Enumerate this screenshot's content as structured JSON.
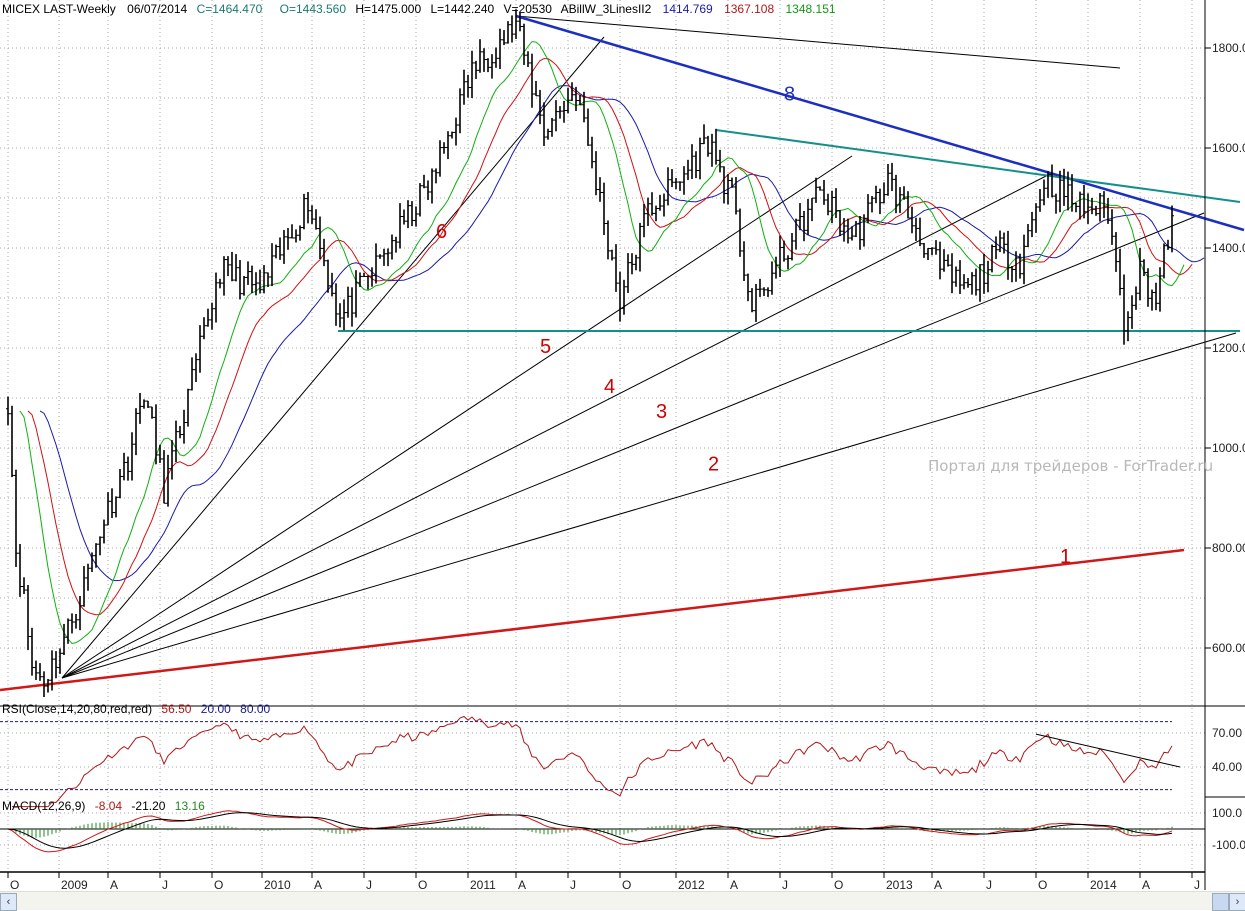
{
  "header": {
    "symbol": "MICEX LAST-Weekly",
    "date": "06/07/2014",
    "close": "C=1464.470",
    "open": "O=1443.560",
    "high": "H=1475.000",
    "low": "L=1442.240",
    "volume": "V=20530",
    "indicator": "ABillW_3LinesII2",
    "jaw": "1414.769",
    "teeth": "1367.108",
    "lips": "1348.151"
  },
  "rsi_legend": {
    "name": "RSI(Close,14,20,80,red,red)",
    "value": "56.50",
    "low": "20.00",
    "high": "80.00"
  },
  "macd_legend": {
    "name": "MACD(12,26,9)",
    "macd": "-8.04",
    "signal": "-21.20",
    "hist": "13.16"
  },
  "watermark": "Портал для трейдеров - ForTrader.ru",
  "colors": {
    "jaw": "#1a1aa8",
    "teeth": "#d01010",
    "lips": "#10b010",
    "trend8": "#1c2fc0",
    "teal": "#14908a",
    "trend1": "#d01818",
    "rsi": "#b01818",
    "macd_hist": "#228822"
  },
  "chart_data": {
    "type": "line",
    "title": "MICEX LAST-Weekly",
    "bars": 292,
    "ylim": [
      480,
      1900
    ],
    "price_ticks": [
      "600.00",
      "800.00",
      "1000.00",
      "1200.00",
      "1400.00",
      "1600.00",
      "1800.00"
    ],
    "price_tick_values": [
      600,
      800,
      1000,
      1200,
      1400,
      1600,
      1800
    ],
    "price_anchors": [
      [
        0,
        1096
      ],
      [
        2,
        800
      ],
      [
        4,
        696
      ],
      [
        6,
        560
      ],
      [
        9,
        536
      ],
      [
        13,
        596
      ],
      [
        18,
        700
      ],
      [
        23,
        836
      ],
      [
        30,
        980
      ],
      [
        34,
        1116
      ],
      [
        39,
        916
      ],
      [
        45,
        1100
      ],
      [
        53,
        1356
      ],
      [
        63,
        1316
      ],
      [
        70,
        1420
      ],
      [
        75,
        1496
      ],
      [
        83,
        1256
      ],
      [
        93,
        1376
      ],
      [
        106,
        1536
      ],
      [
        116,
        1756
      ],
      [
        127,
        1846
      ],
      [
        134,
        1636
      ],
      [
        142,
        1716
      ],
      [
        148,
        1496
      ],
      [
        153,
        1296
      ],
      [
        160,
        1476
      ],
      [
        168,
        1536
      ],
      [
        175,
        1616
      ],
      [
        181,
        1496
      ],
      [
        186,
        1276
      ],
      [
        196,
        1416
      ],
      [
        203,
        1516
      ],
      [
        211,
        1416
      ],
      [
        220,
        1536
      ],
      [
        233,
        1356
      ],
      [
        240,
        1316
      ],
      [
        248,
        1396
      ],
      [
        253,
        1376
      ],
      [
        259,
        1536
      ],
      [
        268,
        1486
      ],
      [
        275,
        1476
      ],
      [
        279,
        1256
      ],
      [
        283,
        1356
      ],
      [
        287,
        1296
      ],
      [
        291,
        1464
      ]
    ],
    "x_ticks": [
      {
        "label": "O",
        "week": 0
      },
      {
        "label": "2009",
        "week": 12.75
      },
      {
        "label": "A",
        "week": 25
      },
      {
        "label": "J",
        "week": 38
      },
      {
        "label": "O",
        "week": 51
      },
      {
        "label": "2010",
        "week": 63.5
      },
      {
        "label": "A",
        "week": 76
      },
      {
        "label": "J",
        "week": 89
      },
      {
        "label": "O",
        "week": 102
      },
      {
        "label": "2011",
        "week": 115
      },
      {
        "label": "A",
        "week": 127
      },
      {
        "label": "J",
        "week": 140
      },
      {
        "label": "O",
        "week": 153
      },
      {
        "label": "2012",
        "week": 167
      },
      {
        "label": "A",
        "week": 180
      },
      {
        "label": "J",
        "week": 193
      },
      {
        "label": "O",
        "week": 206
      },
      {
        "label": "2013",
        "week": 219
      },
      {
        "label": "A",
        "week": 231
      },
      {
        "label": "J",
        "week": 244
      },
      {
        "label": "O",
        "week": 257
      },
      {
        "label": "2014",
        "week": 270
      },
      {
        "label": "A",
        "week": 283
      },
      {
        "label": "J",
        "week": 296
      }
    ],
    "rsi_ticks": [
      "70.00",
      "40.00"
    ],
    "rsi_tick_values": [
      70,
      40
    ],
    "macd_ticks": [
      "100.0",
      "-100.0"
    ],
    "macd_tick_values": [
      100,
      -100
    ],
    "trendlines": [
      {
        "label": "1",
        "from": [
          -2,
          516
        ],
        "to": [
          294,
          796
        ],
        "label_at": [
          263,
          770
        ],
        "color": "trend1",
        "width": 2.5
      },
      {
        "label": "2",
        "from": [
          13.5,
          540
        ],
        "to": [
          307,
          1230
        ],
        "label_at": [
          175,
          955
        ],
        "color": "black",
        "width": 1
      },
      {
        "label": "3",
        "from": [
          13.5,
          540
        ],
        "to": [
          299,
          1470
        ],
        "label_at": [
          162,
          1060
        ],
        "color": "black",
        "width": 1
      },
      {
        "label": "4",
        "from": [
          13.5,
          540
        ],
        "to": [
          260,
          1546
        ],
        "label_at": [
          149,
          1110
        ],
        "color": "black",
        "width": 1
      },
      {
        "label": "5",
        "from": [
          13.5,
          540
        ],
        "to": [
          211,
          1584
        ],
        "label_at": [
          133,
          1190
        ],
        "color": "black",
        "width": 1
      },
      {
        "label": "6",
        "from": [
          13.5,
          540
        ],
        "to": [
          149,
          1822
        ],
        "label_at": [
          107,
          1420
        ],
        "color": "black",
        "width": 1
      },
      {
        "label": "",
        "from": [
          127,
          1864
        ],
        "to": [
          278,
          1760
        ],
        "label_at": null,
        "color": "black",
        "width": 1
      },
      {
        "label": "8",
        "from": [
          127,
          1864
        ],
        "to": [
          309,
          1436
        ],
        "label_at": [
          194,
          1695
        ],
        "color": "trend8",
        "width": 2.5
      },
      {
        "label": "",
        "from": [
          177,
          1636
        ],
        "to": [
          308,
          1492
        ],
        "label_at": null,
        "color": "teal",
        "width": 2
      },
      {
        "label": "",
        "from": [
          82.5,
          1234
        ],
        "to": [
          308,
          1234
        ],
        "label_at": null,
        "color": "teal",
        "width": 2
      }
    ],
    "rsi_trendline": {
      "from": [
        257,
        69
      ],
      "to": [
        293,
        40
      ]
    }
  }
}
